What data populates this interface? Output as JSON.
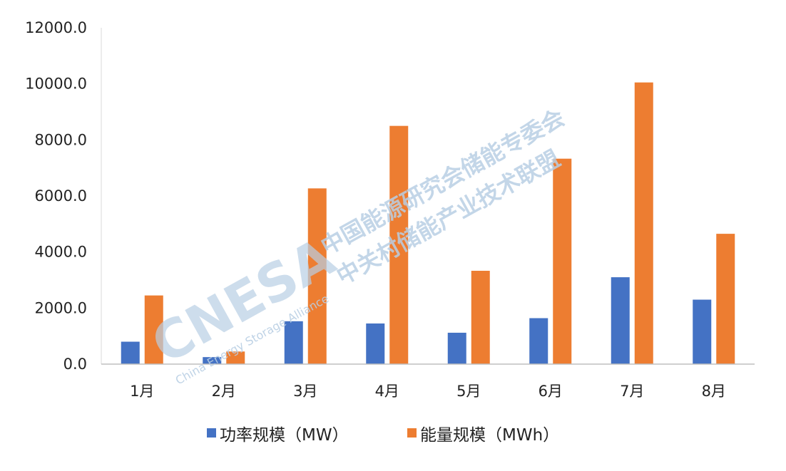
{
  "chart_data": {
    "type": "bar",
    "categories": [
      "1月",
      "2月",
      "3月",
      "4月",
      "5月",
      "6月",
      "7月",
      "8月"
    ],
    "series": [
      {
        "name": "功率规模（MW）",
        "color": "#4472c4",
        "values": [
          800,
          250,
          1530,
          1450,
          1120,
          1640,
          3100,
          2300
        ]
      },
      {
        "name": "能量规模（MWh）",
        "color": "#ed7d31",
        "values": [
          2450,
          450,
          6270,
          8500,
          3330,
          7330,
          10050,
          4650
        ]
      }
    ],
    "y_ticks": [
      "0.0",
      "2000.0",
      "4000.0",
      "6000.0",
      "8000.0",
      "10000.0",
      "12000.0"
    ],
    "ylim": [
      0,
      12000
    ],
    "grid": false,
    "legend_position": "bottom",
    "watermark": {
      "logo": "CNESA",
      "line1": "中国能源研究会储能专委会",
      "line2": "中关村储能产业技术联盟",
      "english": "China Energy Storage Alliance"
    }
  }
}
